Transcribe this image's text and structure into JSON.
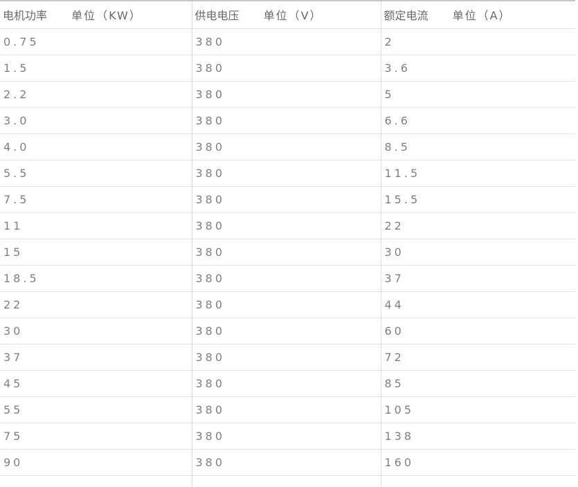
{
  "chart_data": {
    "type": "table",
    "columns": [
      {
        "label": "电机功率",
        "unit": "单位（KW）"
      },
      {
        "label": "供电电压",
        "unit": "单位（V）"
      },
      {
        "label": "额定电流",
        "unit": "单位（A）"
      }
    ],
    "rows": [
      [
        "0.75",
        "380",
        "2"
      ],
      [
        "1.5",
        "380",
        "3.6"
      ],
      [
        "2.2",
        "380",
        "5"
      ],
      [
        "3.0",
        "380",
        "6.6"
      ],
      [
        "4.0",
        "380",
        "8.5"
      ],
      [
        "5.5",
        "380",
        "11.5"
      ],
      [
        "7.5",
        "380",
        "15.5"
      ],
      [
        "11",
        "380",
        "22"
      ],
      [
        "15",
        "380",
        "30"
      ],
      [
        "18.5",
        "380",
        "37"
      ],
      [
        "22",
        "380",
        "44"
      ],
      [
        "30",
        "380",
        "60"
      ],
      [
        "37",
        "380",
        "72"
      ],
      [
        "45",
        "380",
        "85"
      ],
      [
        "55",
        "380",
        "105"
      ],
      [
        "75",
        "380",
        "138"
      ],
      [
        "90",
        "380",
        "160"
      ]
    ],
    "title": "",
    "layout": {
      "grid": "horizontal-and-column-separators",
      "clipped_bottom_row": true
    },
    "colors": {
      "cell_text": "#7f7f7f",
      "header_text": "#686868",
      "row_border": "#e1e1e1",
      "column_border": "#d9d9d9",
      "top_border": "#c6c6c6",
      "background": "#ffffff"
    }
  }
}
